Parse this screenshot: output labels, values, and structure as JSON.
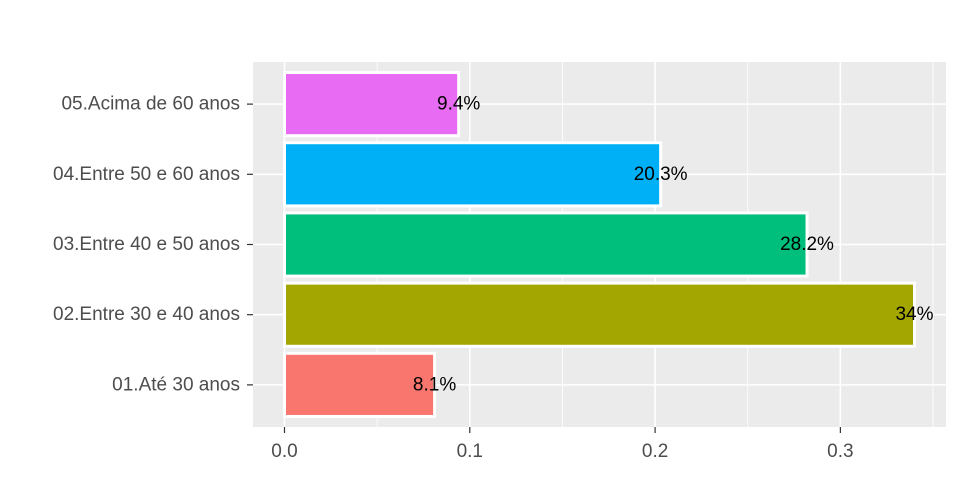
{
  "chart_data": {
    "type": "bar",
    "orientation": "horizontal",
    "title": "",
    "xlabel": "",
    "ylabel": "",
    "categories": [
      "01.Até 30 anos",
      "02.Entre 30 e 40 anos",
      "03.Entre 40 e 50 anos",
      "04.Entre 50 e 60 anos",
      "05.Acima de 60 anos"
    ],
    "values": [
      0.081,
      0.34,
      0.282,
      0.203,
      0.094
    ],
    "data_labels": [
      "8.1%",
      "34%",
      "28.2%",
      "20.3%",
      "9.4%"
    ],
    "colors": [
      "#F8766D",
      "#A3A500",
      "#00BF7D",
      "#00B0F6",
      "#E76BF3"
    ],
    "xlim": [
      -0.017,
      0.357
    ],
    "x_ticks": [
      0.0,
      0.1,
      0.2,
      0.3
    ],
    "x_tick_labels": [
      "0.0",
      "0.1",
      "0.2",
      "0.3"
    ],
    "grid": true,
    "legend": "none",
    "panel_background": "#EBEBEB"
  }
}
